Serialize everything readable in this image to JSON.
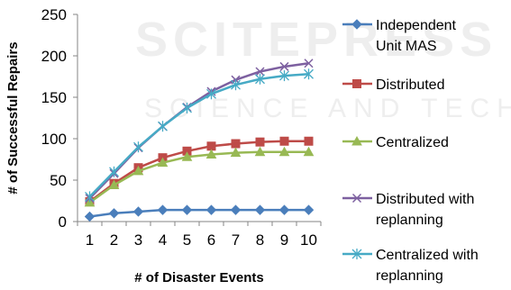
{
  "chart_data": {
    "type": "line",
    "x": [
      1,
      2,
      3,
      4,
      5,
      6,
      7,
      8,
      9,
      10
    ],
    "xlabel": "# of Disaster Events",
    "ylabel": "# of Successful Repairs",
    "ylim": [
      0,
      250
    ],
    "yticks": [
      0,
      50,
      100,
      150,
      200,
      250
    ],
    "grid": false,
    "legend_position": "right",
    "series": [
      {
        "name": "Independent Unit MAS",
        "label_lines": [
          "Independent",
          "Unit MAS"
        ],
        "color": "#4a7ebb",
        "marker": "diamond",
        "values": [
          6,
          10,
          12,
          14,
          14,
          14,
          14,
          14,
          14,
          14
        ]
      },
      {
        "name": "Distributed",
        "label_lines": [
          "Distributed"
        ],
        "color": "#be4b48",
        "marker": "square",
        "values": [
          24,
          46,
          65,
          77,
          85,
          91,
          94,
          96,
          97,
          97
        ]
      },
      {
        "name": "Centralized",
        "label_lines": [
          "Centralized"
        ],
        "color": "#98b954",
        "marker": "triangle",
        "values": [
          23,
          44,
          61,
          71,
          78,
          81,
          83,
          84,
          84,
          84
        ]
      },
      {
        "name": "Distributed with replanning",
        "label_lines": [
          "Distributed with",
          "replanning"
        ],
        "color": "#7d60a0",
        "marker": "x",
        "values": [
          28,
          58,
          89,
          115,
          138,
          157,
          171,
          181,
          187,
          191
        ]
      },
      {
        "name": "Centralized with replanning",
        "label_lines": [
          "Centralized with",
          "replanning"
        ],
        "color": "#46aac5",
        "marker": "star",
        "values": [
          30,
          60,
          90,
          115,
          137,
          154,
          165,
          172,
          176,
          178
        ]
      }
    ]
  }
}
